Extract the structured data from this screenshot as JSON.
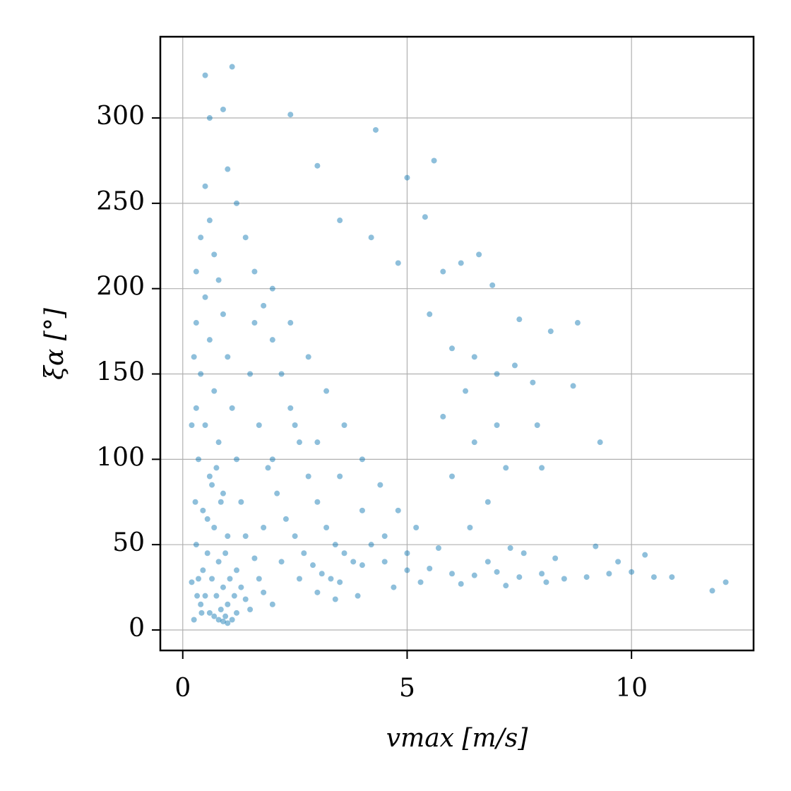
{
  "chart_data": {
    "type": "scatter",
    "x_label": "vmax [m/s]",
    "y_label": "ξα [°]",
    "color": "#0570b0",
    "xlim": [
      -0.5,
      12.72
    ],
    "xticks": [
      0,
      5,
      10
    ],
    "ylim": [
      -12,
      347.6
    ],
    "yticks": [
      0,
      50,
      100,
      150,
      200,
      250,
      300
    ],
    "grid": true,
    "x": [
      0.3,
      0.4,
      0.5,
      0.6,
      0.7,
      0.8,
      0.9,
      1.0,
      0.35,
      0.45,
      0.55,
      0.65,
      0.75,
      0.85,
      0.95,
      1.1,
      0.3,
      0.4,
      0.5,
      0.6,
      0.7,
      0.8,
      0.9,
      1.0,
      1.2,
      1.3,
      1.4,
      1.5,
      0.3,
      0.35,
      0.4,
      0.3,
      0.5,
      0.6,
      0.7,
      0.8,
      0.9,
      1.0,
      1.1,
      1.2,
      1.3,
      1.4,
      1.6,
      1.7,
      1.8,
      2.0,
      0.25,
      0.28,
      0.32,
      0.42,
      0.6,
      0.9,
      1.0,
      1.2,
      1.4,
      1.6,
      1.8,
      2.0,
      2.2,
      2.4,
      2.6,
      2.8,
      3.0,
      3.2,
      3.4,
      3.6,
      3.8,
      4.0,
      1.5,
      1.7,
      1.9,
      2.1,
      2.3,
      2.5,
      2.7,
      2.9,
      3.1,
      3.3,
      3.5,
      1.6,
      2.0,
      2.4,
      2.8,
      3.2,
      3.6,
      4.0,
      4.4,
      4.8,
      5.2,
      1.8,
      2.2,
      2.6,
      3.0,
      3.4,
      2.0,
      2.5,
      3.0,
      3.5,
      4.0,
      4.5,
      5.0,
      1.1,
      0.5,
      2.4,
      4.3,
      3.0,
      5.6,
      5.0,
      3.5,
      4.2,
      5.4,
      4.8,
      5.8,
      6.2,
      6.6,
      6.9,
      7.5,
      8.2,
      8.8,
      5.5,
      6.0,
      6.5,
      7.0,
      7.4,
      7.8,
      8.7,
      6.3,
      5.8,
      7.0,
      7.9,
      9.3,
      6.5,
      7.2,
      8.0,
      6.0,
      6.8,
      4.5,
      5.0,
      5.5,
      6.0,
      6.5,
      7.0,
      7.5,
      8.0,
      8.5,
      9.0,
      9.5,
      10.0,
      10.5,
      10.9,
      11.8,
      12.1,
      9.2,
      8.3,
      7.6,
      6.8,
      10.3,
      9.7,
      5.3,
      6.2,
      7.2,
      8.1,
      4.7,
      3.9,
      4.2,
      5.7,
      6.4,
      7.3,
      0.5,
      0.6,
      0.7,
      0.8,
      0.9,
      1.0,
      1.2,
      0.45,
      0.55,
      0.65,
      0.75,
      0.85,
      0.95,
      1.05,
      1.15,
      0.2,
      0.2,
      0.25
    ],
    "values": [
      180,
      150,
      120,
      90,
      60,
      40,
      25,
      15,
      100,
      70,
      45,
      30,
      20,
      12,
      8,
      6,
      210,
      230,
      195,
      170,
      140,
      110,
      80,
      55,
      35,
      25,
      18,
      12,
      50,
      30,
      15,
      130,
      260,
      240,
      220,
      205,
      185,
      160,
      130,
      100,
      75,
      55,
      42,
      30,
      22,
      15,
      160,
      75,
      20,
      10,
      300,
      305,
      270,
      250,
      230,
      210,
      190,
      170,
      150,
      130,
      110,
      90,
      75,
      60,
      50,
      45,
      40,
      38,
      150,
      120,
      95,
      80,
      65,
      55,
      45,
      38,
      33,
      30,
      28,
      180,
      200,
      180,
      160,
      140,
      120,
      100,
      85,
      70,
      60,
      60,
      40,
      30,
      22,
      18,
      100,
      120,
      110,
      90,
      70,
      55,
      45,
      330,
      325,
      302,
      293,
      272,
      275,
      265,
      240,
      230,
      242,
      215,
      210,
      215,
      220,
      202,
      182,
      175,
      180,
      185,
      165,
      160,
      150,
      155,
      145,
      143,
      140,
      125,
      120,
      120,
      110,
      110,
      95,
      95,
      90,
      75,
      40,
      35,
      36,
      33,
      32,
      34,
      31,
      33,
      30,
      31,
      33,
      34,
      31,
      31,
      23,
      28,
      49,
      42,
      45,
      40,
      44,
      40,
      28,
      27,
      26,
      28,
      25,
      20,
      50,
      48,
      60,
      48,
      20,
      10,
      8,
      6,
      5,
      4,
      10,
      35,
      65,
      85,
      95,
      75,
      45,
      30,
      20,
      120,
      28,
      6
    ]
  }
}
